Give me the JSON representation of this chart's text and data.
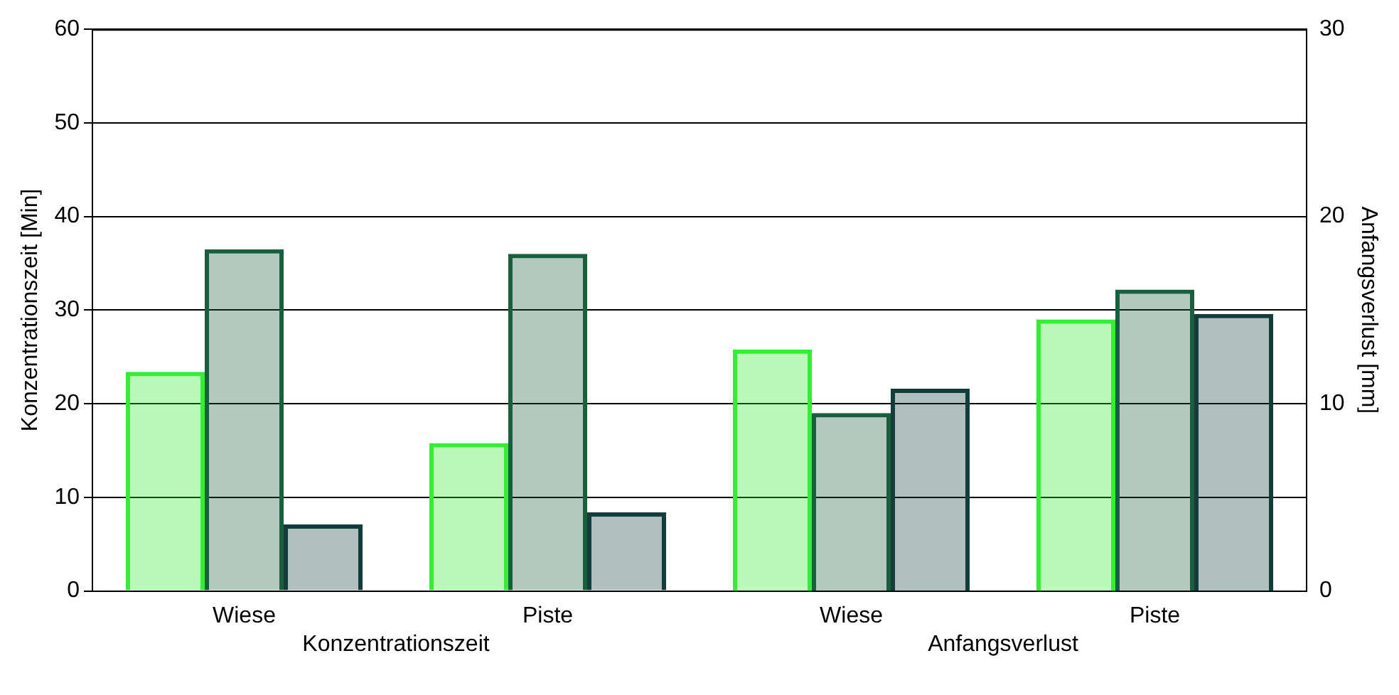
{
  "chart_data": {
    "type": "bar",
    "categories": [
      "Wiese",
      "Piste",
      "Wiese",
      "Piste"
    ],
    "annotations": [
      "Konzentrationszeit",
      "Anfangsverlust"
    ],
    "ylabel": "Konzentrationszeit [Min]",
    "y2label": "Anfangsverlust [mm]",
    "series": [
      {
        "color": "#33ee33",
        "values": [
          23.4,
          15.8,
          null,
          null
        ]
      },
      {
        "color": "#1b5e3e",
        "values": [
          36.5,
          36.0,
          null,
          null
        ]
      },
      {
        "color": "#123d3a",
        "values": [
          7.1,
          8.4,
          null,
          null
        ]
      },
      {
        "color": "#33ee33",
        "axis": "y2",
        "values": [
          null,
          null,
          12.9,
          14.5
        ]
      },
      {
        "color": "#1b5e3e",
        "axis": "y2",
        "values": [
          null,
          null,
          9.5,
          16.1
        ]
      },
      {
        "color": "#123d3a",
        "axis": "y2",
        "values": [
          null,
          null,
          10.8,
          14.8
        ]
      }
    ],
    "ylim": [
      0,
      60
    ],
    "yticks": [
      0,
      10,
      20,
      30,
      40,
      50,
      60
    ],
    "y2lim": [
      0,
      30
    ],
    "y2ticks": [
      0,
      10,
      20,
      30
    ],
    "grid": "y",
    "legend": false
  }
}
